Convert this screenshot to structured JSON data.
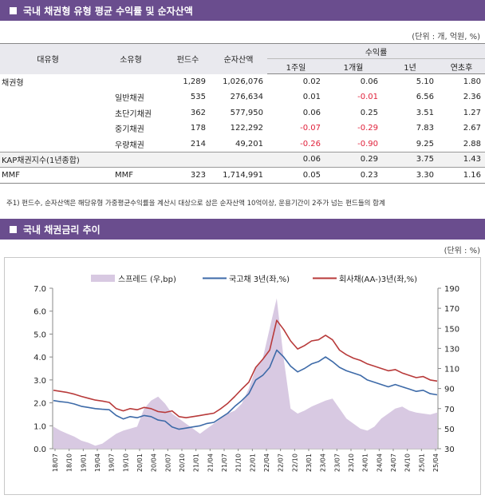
{
  "section1": {
    "title": "국내 채권형 유형 평균 수익률 및 순자산액",
    "unit": "(단위 : 개, 억원, %)"
  },
  "table": {
    "headers": {
      "type": "대유형",
      "subtype": "소유형",
      "funds": "펀드수",
      "assets": "순자산액",
      "returns": "수익률",
      "w1": "1주일",
      "m1": "1개월",
      "y1": "1년",
      "ytd": "연초후"
    },
    "rows": [
      {
        "type": "채권형",
        "subtype": "",
        "funds": "1,289",
        "assets": "1,026,076",
        "w1": "0.02",
        "m1": "0.06",
        "y1": "5.10",
        "ytd": "1.80"
      },
      {
        "type": "",
        "subtype": "일반채권",
        "funds": "535",
        "assets": "276,634",
        "w1": "0.01",
        "m1": "-0.01",
        "y1": "6.56",
        "ytd": "2.36"
      },
      {
        "type": "",
        "subtype": "초단기채권",
        "funds": "362",
        "assets": "577,950",
        "w1": "0.06",
        "m1": "0.25",
        "y1": "3.51",
        "ytd": "1.27"
      },
      {
        "type": "",
        "subtype": "중기채권",
        "funds": "178",
        "assets": "122,292",
        "w1": "-0.07",
        "m1": "-0.29",
        "y1": "7.83",
        "ytd": "2.67"
      },
      {
        "type": "",
        "subtype": "우량채권",
        "funds": "214",
        "assets": "49,201",
        "w1": "-0.26",
        "m1": "-0.90",
        "y1": "9.25",
        "ytd": "2.88"
      },
      {
        "type": "KAP채권지수(1년종합)",
        "subtype": "",
        "funds": "",
        "assets": "",
        "w1": "0.06",
        "m1": "0.29",
        "y1": "3.75",
        "ytd": "1.43"
      },
      {
        "type": "MMF",
        "subtype": "MMF",
        "funds": "323",
        "assets": "1,714,991",
        "w1": "0.05",
        "m1": "0.23",
        "y1": "3.30",
        "ytd": "1.16"
      }
    ]
  },
  "note": "주1) 펀드수, 순자산액은 해당유형 가중평균수익률을 계산시 대상으로 삼은 순자산액 10억이상, 운용기간이 2주가 넘는 펀드들의 합계",
  "section2": {
    "title": "국내 채권금리 추이",
    "unit": "(단위 : %)"
  },
  "colors": {
    "header_bg": "#6a4d8e",
    "gov": "#3d6aa8",
    "corp": "#b83a3a",
    "spread": "#d8c9e2",
    "negative": "#e0203a"
  },
  "chart_data": {
    "type": "line",
    "x_ticks": [
      "18/07",
      "18/10",
      "19/01",
      "19/04",
      "19/07",
      "19/10",
      "20/01",
      "20/04",
      "20/07",
      "20/10",
      "21/01",
      "21/04",
      "21/07",
      "21/10",
      "22/01",
      "22/04",
      "22/07",
      "22/10",
      "23/01",
      "23/04",
      "23/07",
      "23/10",
      "24/01",
      "24/04",
      "24/07",
      "24/10",
      "25/01",
      "25/04"
    ],
    "y_left": {
      "min": 0,
      "max": 7,
      "ticks": [
        "0.0",
        "1.0",
        "2.0",
        "3.0",
        "4.0",
        "5.0",
        "6.0",
        "7.0"
      ]
    },
    "y_right": {
      "min": 30,
      "max": 190,
      "ticks": [
        "30",
        "50",
        "70",
        "90",
        "110",
        "130",
        "150",
        "170",
        "190"
      ]
    },
    "series": [
      {
        "name": "스프레드 (우,bp)",
        "type": "area",
        "axis": "right",
        "values": [
          52,
          48,
          45,
          42,
          38,
          36,
          33,
          35,
          40,
          45,
          48,
          50,
          52,
          70,
          78,
          82,
          75,
          65,
          60,
          55,
          50,
          45,
          50,
          55,
          60,
          65,
          68,
          75,
          90,
          110,
          120,
          150,
          180,
          120,
          70,
          65,
          68,
          72,
          75,
          78,
          80,
          70,
          60,
          55,
          50,
          48,
          52,
          60,
          65,
          70,
          72,
          68,
          66,
          65,
          64,
          66
        ]
      },
      {
        "name": "국고채 3년(좌,%)",
        "type": "line",
        "axis": "left",
        "values": [
          2.1,
          2.05,
          2.02,
          1.95,
          1.85,
          1.8,
          1.75,
          1.72,
          1.7,
          1.45,
          1.3,
          1.4,
          1.35,
          1.45,
          1.4,
          1.25,
          1.2,
          0.95,
          0.85,
          0.9,
          0.95,
          1.0,
          1.1,
          1.15,
          1.35,
          1.55,
          1.85,
          2.1,
          2.4,
          3.0,
          3.2,
          3.55,
          4.3,
          4.0,
          3.6,
          3.35,
          3.5,
          3.7,
          3.8,
          4.0,
          3.8,
          3.55,
          3.4,
          3.3,
          3.2,
          3.0,
          2.9,
          2.8,
          2.7,
          2.8,
          2.7,
          2.6,
          2.5,
          2.55,
          2.4,
          2.35
        ]
      },
      {
        "name": "회사채(AA-)3년(좌,%)",
        "type": "line",
        "axis": "left",
        "values": [
          2.55,
          2.5,
          2.45,
          2.38,
          2.28,
          2.2,
          2.12,
          2.08,
          2.02,
          1.75,
          1.65,
          1.75,
          1.7,
          1.8,
          1.75,
          1.62,
          1.58,
          1.65,
          1.4,
          1.35,
          1.4,
          1.45,
          1.5,
          1.55,
          1.75,
          1.98,
          2.28,
          2.6,
          2.9,
          3.55,
          3.9,
          4.3,
          5.6,
          5.2,
          4.7,
          4.35,
          4.5,
          4.7,
          4.75,
          4.95,
          4.75,
          4.3,
          4.1,
          3.95,
          3.85,
          3.7,
          3.6,
          3.5,
          3.4,
          3.45,
          3.3,
          3.2,
          3.1,
          3.15,
          3.0,
          2.95
        ]
      }
    ]
  }
}
